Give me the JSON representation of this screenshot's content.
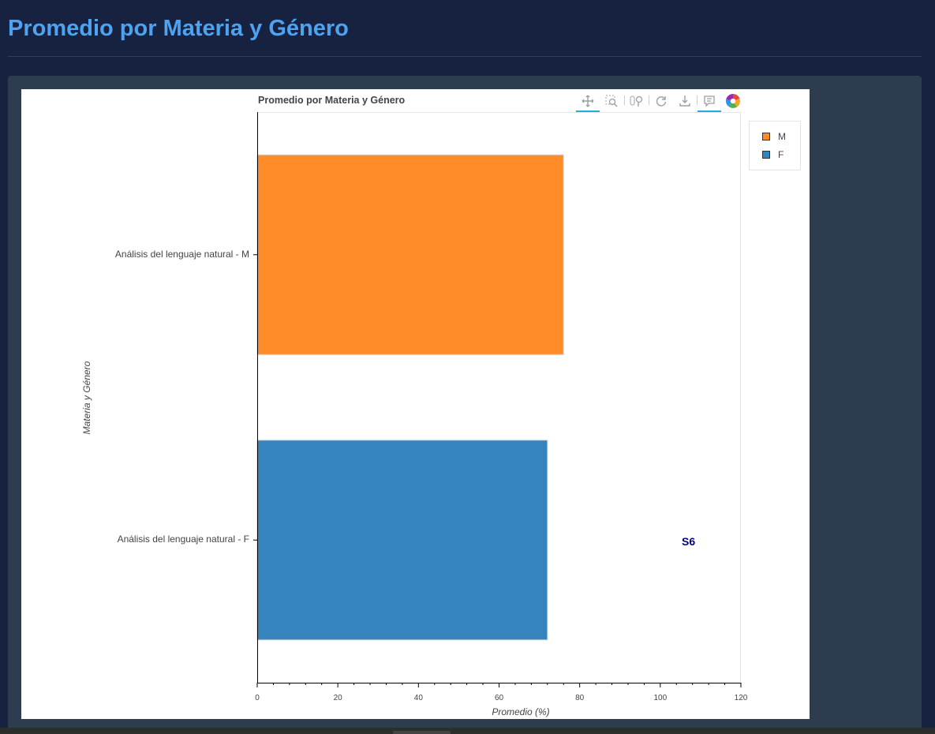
{
  "page": {
    "title": "Promedio por Materia y Género"
  },
  "toolbar": {
    "tools": [
      "pan-icon",
      "box-zoom-icon",
      "wheel-zoom-icon",
      "reset-icon",
      "save-icon",
      "hover-icon",
      "bokeh-logo"
    ]
  },
  "annotation": {
    "text": "S6"
  },
  "chart_data": {
    "type": "bar",
    "orientation": "horizontal",
    "title": "Promedio por Materia y Género",
    "xlabel": "Promedio (%)",
    "ylabel": "Materia y Género",
    "categories": [
      "Análisis del lenguaje natural - M",
      "Análisis del lenguaje natural - F"
    ],
    "values": [
      76,
      72
    ],
    "colors": [
      "#ff8c29",
      "#3584be"
    ],
    "xlim": [
      0,
      120
    ],
    "xticks": [
      0,
      20,
      40,
      60,
      80,
      100,
      120
    ],
    "legend": [
      {
        "name": "M",
        "color": "#ff8c29"
      },
      {
        "name": "F",
        "color": "#3584be"
      }
    ],
    "legend_position": "right",
    "grid": false
  }
}
